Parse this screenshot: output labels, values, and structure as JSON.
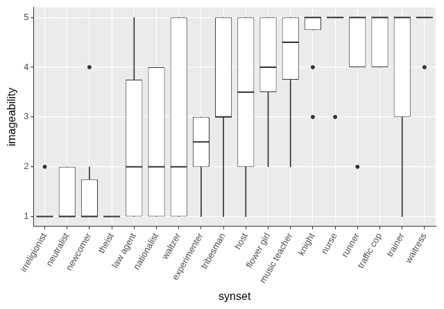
{
  "chart_data": {
    "type": "boxplot",
    "x_label": "synset",
    "y_label": "imageability",
    "categories": [
      "irreligionist",
      "neutralist",
      "newcomer",
      "theist",
      "law agent",
      "nationalist",
      "waltzer",
      "experimenter",
      "tribesman",
      "host",
      "flower girl",
      "music teacher",
      "knight",
      "nurse",
      "runner",
      "traffic cop",
      "trainer",
      "waitress"
    ],
    "min": [
      1,
      1,
      1,
      1,
      1,
      1,
      1,
      1,
      1,
      1,
      2,
      2,
      4.75,
      5,
      4,
      4,
      1,
      5
    ],
    "q1": [
      1,
      1,
      1,
      1,
      1,
      1,
      1,
      2,
      3,
      2,
      3.5,
      3.75,
      4.75,
      5,
      4,
      4,
      3,
      5
    ],
    "median": [
      1,
      1,
      1,
      1,
      2,
      2,
      2,
      2.5,
      3,
      3.5,
      4,
      4.5,
      5,
      5,
      5,
      5,
      5,
      5
    ],
    "q3": [
      1,
      2,
      1.75,
      1,
      3.75,
      4,
      5,
      3,
      5,
      5,
      5,
      5,
      5,
      5,
      5,
      5,
      5,
      5
    ],
    "max": [
      1,
      2,
      2,
      1,
      5,
      4,
      5,
      3,
      5,
      5,
      5,
      5,
      5,
      5,
      5,
      5,
      5,
      5
    ],
    "outliers": [
      [
        2
      ],
      [],
      [
        4
      ],
      [],
      [],
      [],
      [],
      [],
      [],
      [],
      [],
      [],
      [
        3,
        4
      ],
      [
        3
      ],
      [
        2
      ],
      [],
      [],
      [
        4
      ]
    ],
    "color": "#ffffff",
    "ylim": [
      0.8,
      5.2
    ],
    "yticks": [
      1,
      2,
      3,
      4,
      5
    ],
    "grid": true
  }
}
